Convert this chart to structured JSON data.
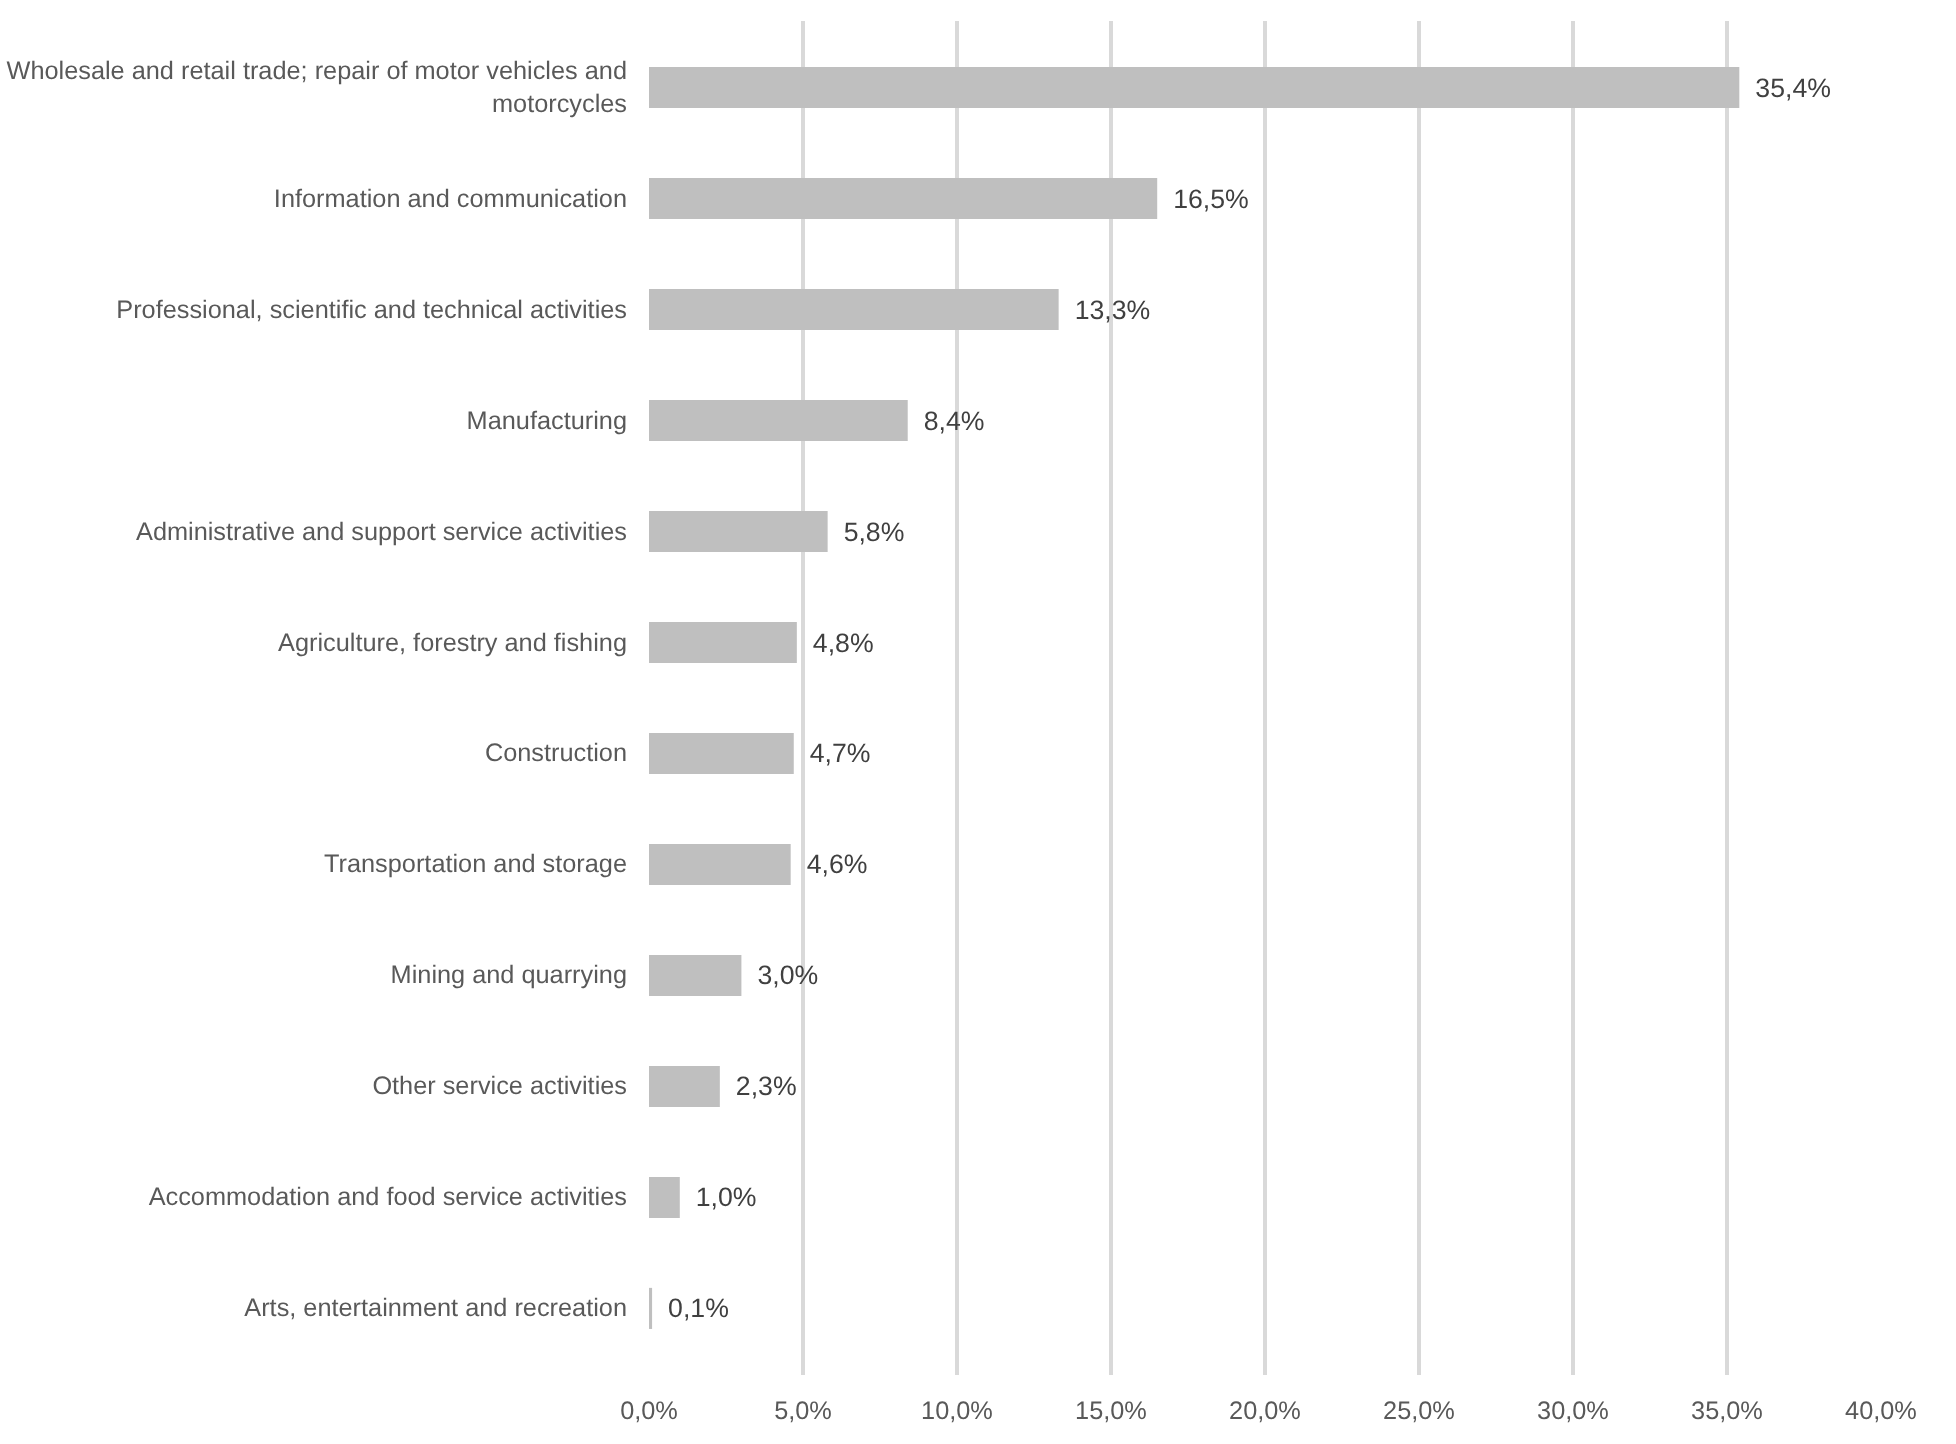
{
  "chart_data": {
    "type": "bar",
    "orientation": "horizontal",
    "categories": [
      "Wholesale and retail trade; repair of motor vehicles and motorcycles",
      "Information and communication",
      "Professional, scientific and technical activities",
      "Manufacturing",
      "Administrative and support service activities",
      "Agriculture, forestry and fishing",
      "Construction",
      "Transportation and storage",
      "Mining and quarrying",
      "Other service activities",
      "Accommodation and food service activities",
      "Arts, entertainment and recreation"
    ],
    "values": [
      35.4,
      16.5,
      13.3,
      8.4,
      5.8,
      4.8,
      4.7,
      4.6,
      3.0,
      2.3,
      1.0,
      0.1
    ],
    "value_labels": [
      "35,4%",
      "16,5%",
      "13,3%",
      "8,4%",
      "5,8%",
      "4,8%",
      "4,7%",
      "4,6%",
      "3,0%",
      "2,3%",
      "1,0%",
      "0,1%"
    ],
    "color": "#bfbfbf",
    "xlim": [
      0,
      40
    ],
    "xticks": [
      {
        "value": 0,
        "label": "0,0%"
      },
      {
        "value": 5,
        "label": "5,0%"
      },
      {
        "value": 10,
        "label": "10,0%"
      },
      {
        "value": 15,
        "label": "15,0%"
      },
      {
        "value": 20,
        "label": "20,0%"
      },
      {
        "value": 25,
        "label": "25,0%"
      },
      {
        "value": 30,
        "label": "30,0%"
      },
      {
        "value": 35,
        "label": "35,0%"
      },
      {
        "value": 40,
        "label": "40,0%"
      }
    ],
    "grid": "x"
  }
}
